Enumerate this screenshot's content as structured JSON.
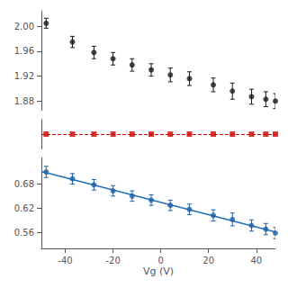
{
  "chart_data": [
    {
      "type": "scatter",
      "xlim": [
        -50,
        48
      ],
      "ylim": [
        1.865,
        2.025
      ],
      "yticks": [
        1.88,
        1.92,
        1.96,
        {
          "value": 2.0,
          "label": "2.00"
        }
      ],
      "tick_labels": "y",
      "grid": false,
      "series": [
        {
          "color": "#1a1a1a",
          "marker": "circle",
          "x": [
            -48,
            -37,
            -28,
            -20,
            -12,
            -4,
            4,
            12,
            22,
            30,
            38,
            44,
            48
          ],
          "values": [
            2.005,
            1.975,
            1.958,
            1.948,
            1.938,
            1.93,
            1.922,
            1.916,
            1.906,
            1.896,
            1.887,
            1.883,
            1.88
          ],
          "errors": [
            0.008,
            0.009,
            0.01,
            0.01,
            0.01,
            0.01,
            0.011,
            0.011,
            0.011,
            0.013,
            0.012,
            0.012,
            0.012
          ]
        }
      ]
    },
    {
      "type": "scatter",
      "xlim": [
        -50,
        48
      ],
      "ylim": [
        1.27,
        1.37
      ],
      "tick_labels": false,
      "grid": false,
      "hline": 1.32,
      "series": [
        {
          "color": "#cc0000",
          "marker": "square",
          "x": [
            -48,
            -37,
            -28,
            -20,
            -12,
            -4,
            4,
            12,
            22,
            30,
            38,
            44,
            48
          ],
          "values": [
            1.32,
            1.32,
            1.32,
            1.32,
            1.32,
            1.32,
            1.32,
            1.32,
            1.32,
            1.32,
            1.32,
            1.32,
            1.32
          ]
        }
      ]
    },
    {
      "type": "scatter",
      "xlim": [
        -50,
        48
      ],
      "ylim": [
        0.52,
        0.745
      ],
      "xlabel": "Vg (V)",
      "xticks": [
        -40,
        -20,
        0,
        20,
        40
      ],
      "yticks": [
        0.56,
        0.62,
        0.68
      ],
      "grid": false,
      "series": [
        {
          "type": "line",
          "color": "#2070bb",
          "x": [
            -50,
            48
          ],
          "values": [
            0.7114,
            0.5609
          ]
        },
        {
          "color": "#2060a8",
          "marker": "circle",
          "x": [
            -48,
            -37,
            -28,
            -20,
            -12,
            -4,
            4,
            12,
            22,
            30,
            38,
            44,
            48
          ],
          "values": [
            0.71,
            0.693,
            0.678,
            0.663,
            0.65,
            0.64,
            0.627,
            0.617,
            0.602,
            0.592,
            0.577,
            0.568,
            0.558
          ],
          "errors": [
            0.014,
            0.013,
            0.013,
            0.013,
            0.013,
            0.013,
            0.013,
            0.013,
            0.014,
            0.016,
            0.014,
            0.014,
            0.014
          ]
        }
      ]
    }
  ]
}
